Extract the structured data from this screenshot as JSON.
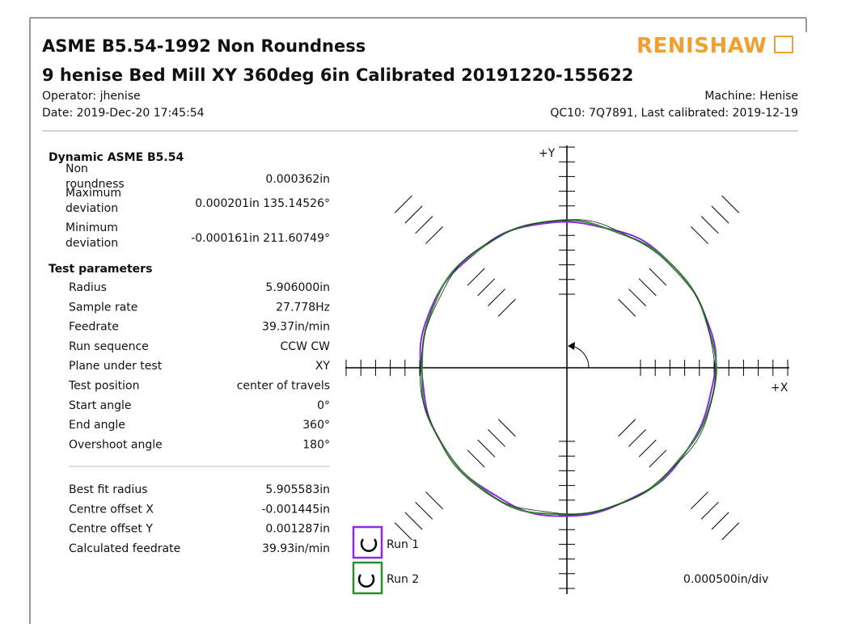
{
  "header": {
    "title": "ASME B5.54-1992 Non Roundness",
    "subtitle": "9 henise Bed Mill XY 360deg 6in Calibrated 20191220-155622",
    "operator": "Operator: jhenise",
    "date": "Date: 2019-Dec-20 17:45:54",
    "machine": "Machine: Henise",
    "qc10": "QC10: 7Q7891, Last calibrated: 2019-12-19",
    "logo": "RENISHAW"
  },
  "dynamic": {
    "heading": "Dynamic ASME B5.54",
    "rows": [
      [
        "Non roundness",
        "0.000362in"
      ],
      [
        "Maximum deviation",
        "0.000201in 135.14526°"
      ],
      [
        "Minimum deviation",
        "-0.000161in 211.60749°"
      ]
    ]
  },
  "parameters": {
    "heading": "Test parameters",
    "rows": [
      [
        "Radius",
        "5.906000in"
      ],
      [
        "Sample rate",
        "27.778Hz"
      ],
      [
        "Feedrate",
        "39.37in/min"
      ],
      [
        "Run sequence",
        "CCW CW"
      ],
      [
        "Plane under test",
        "XY"
      ],
      [
        "Test position",
        "center of travels"
      ],
      [
        "Start angle",
        "0°"
      ],
      [
        "End angle",
        "360°"
      ],
      [
        "Overshoot angle",
        "180°"
      ]
    ]
  },
  "results": {
    "rows": [
      [
        "Best fit radius",
        "5.905583in"
      ],
      [
        "Centre offset X",
        "-0.001445in"
      ],
      [
        "Centre offset Y",
        "0.001287in"
      ],
      [
        "Calculated feedrate",
        "39.93in/min"
      ]
    ]
  },
  "plot": {
    "y_axis": "+Y",
    "x_axis": "+X",
    "legend": [
      "Run 1",
      "Run 2"
    ],
    "scale": "0.000500in/div"
  }
}
